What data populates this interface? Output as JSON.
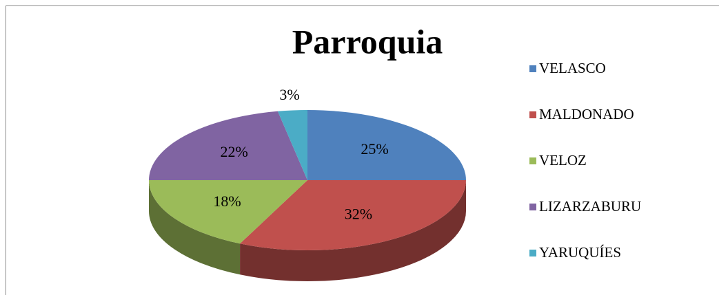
{
  "chart_data": {
    "type": "pie",
    "title": "Parroquia",
    "categories": [
      "VELASCO",
      "MALDONADO",
      "VELOZ",
      "LIZARZABURU",
      "YARUQUÍES"
    ],
    "values": [
      25,
      32,
      18,
      22,
      3
    ],
    "value_labels": [
      "25%",
      "32%",
      "18%",
      "22%",
      "3%"
    ],
    "colors": [
      "#4f81bd",
      "#c0504d",
      "#9bbb59",
      "#8064a2",
      "#4bacc6"
    ],
    "legend": "right"
  }
}
